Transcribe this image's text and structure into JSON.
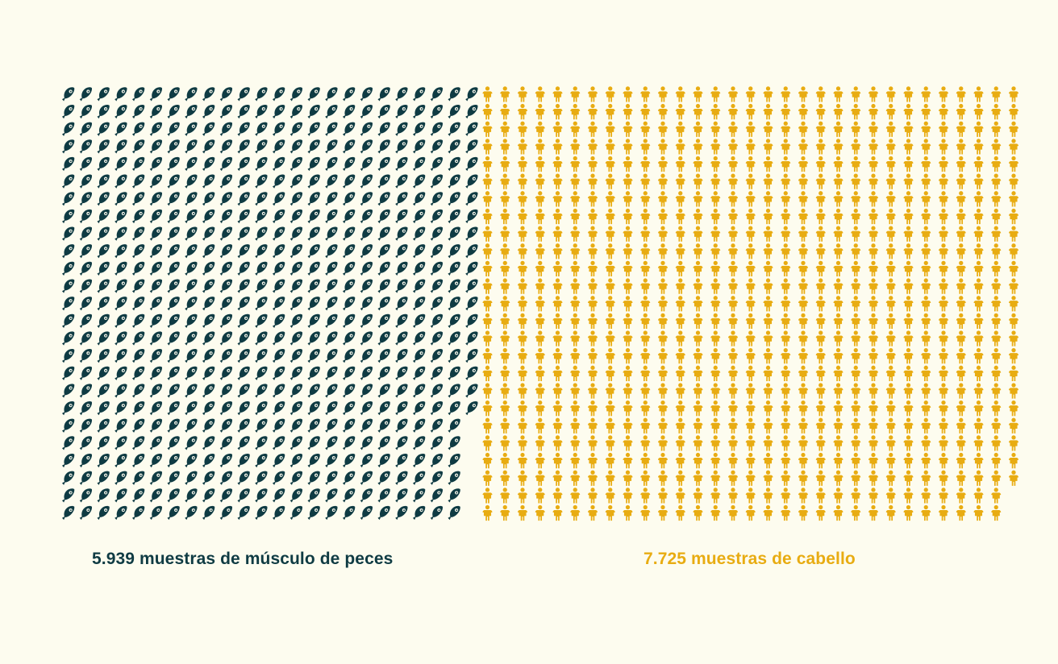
{
  "chart_data": {
    "type": "pictograph",
    "title": "",
    "xlabel": "",
    "ylabel": "",
    "series": [
      {
        "name": "5.939 muestras de músculo de peces",
        "value": 5939,
        "icon": "fish-icon",
        "color": "#0f3b43"
      },
      {
        "name": "7.725 muestras de cabello",
        "value": 7725,
        "icon": "person-icon",
        "color": "#e8ac12"
      }
    ]
  }
}
